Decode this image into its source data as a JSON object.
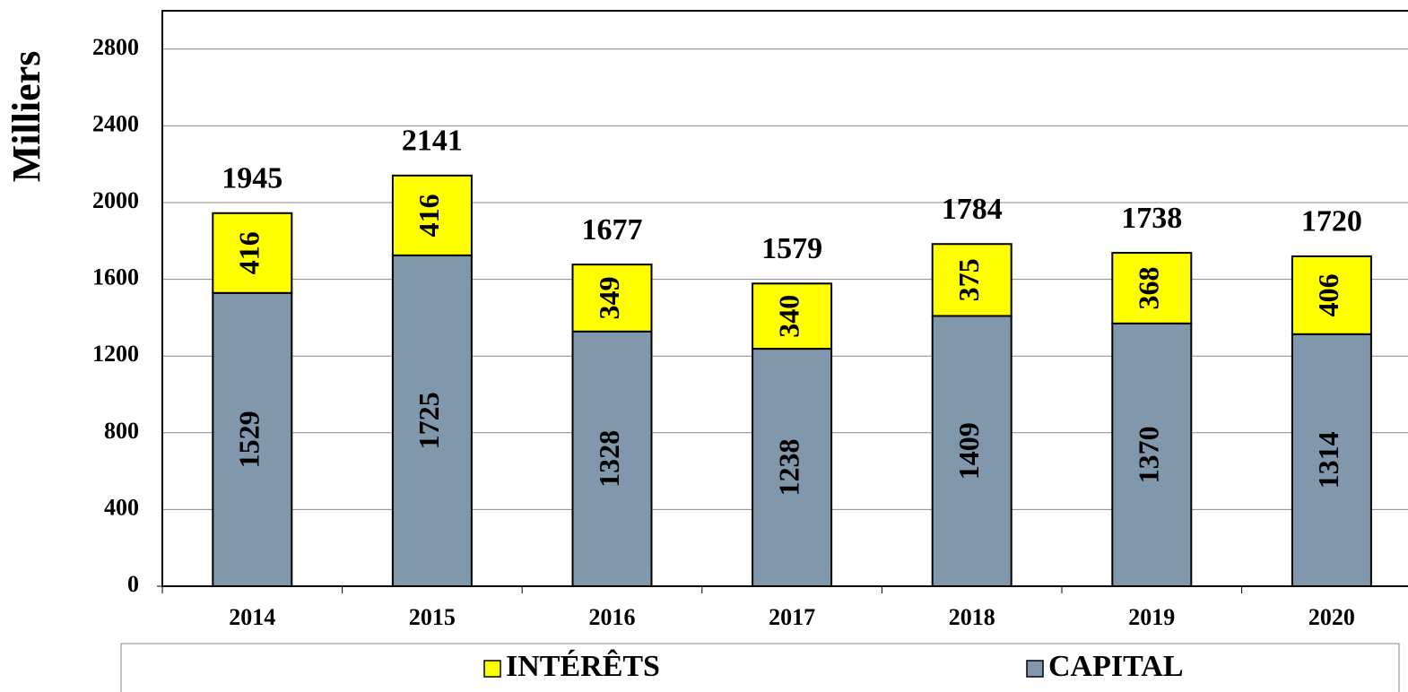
{
  "chart_data": {
    "type": "stacked_bar",
    "y_label": "Milliers",
    "categories": [
      "2014",
      "2015",
      "2016",
      "2017",
      "2018",
      "2019",
      "2020"
    ],
    "series": [
      {
        "name": "INTÉRÊTS",
        "color": "#ffff00",
        "values": [
          416,
          416,
          349,
          340,
          375,
          368,
          406
        ]
      },
      {
        "name": "CAPITAL",
        "color": "#8197ab",
        "values": [
          1529,
          1725,
          1328,
          1238,
          1409,
          1370,
          1314
        ]
      }
    ],
    "totals": [
      1945,
      2141,
      1677,
      1579,
      1784,
      1738,
      1720
    ],
    "ylim": [
      0,
      3000
    ],
    "yticks": [
      0,
      400,
      800,
      1200,
      1600,
      2000,
      2400,
      2800
    ],
    "grid": true
  }
}
